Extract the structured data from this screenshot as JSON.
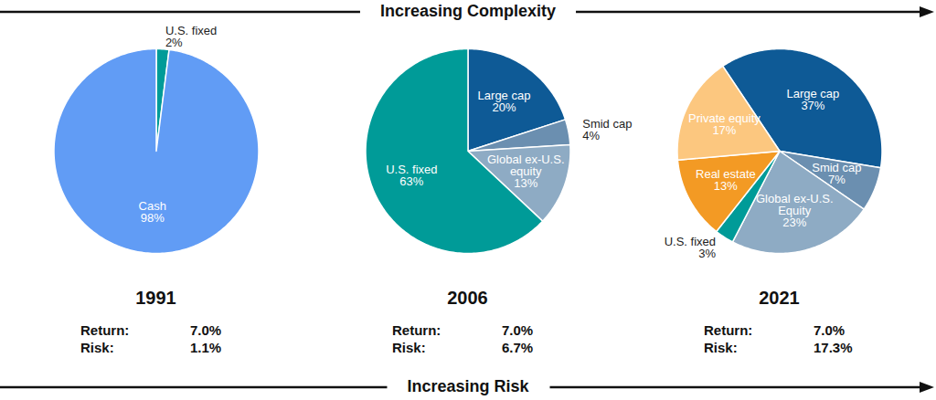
{
  "header": "Increasing Complexity",
  "footer": "Increasing Risk",
  "chart_data": [
    {
      "type": "pie",
      "title": "1991",
      "categories": [
        "U.S. fixed",
        "Cash"
      ],
      "values": [
        2,
        98
      ],
      "value_labels": [
        "2%",
        "98%"
      ],
      "colors": [
        "#009b98",
        "#619cf5"
      ],
      "data_labels": true,
      "stats": [
        [
          "Return:",
          "7.0%"
        ],
        [
          "Risk:",
          "1.1%"
        ]
      ]
    },
    {
      "type": "pie",
      "title": "2006",
      "categories": [
        "Large cap",
        "Smid cap",
        "Global ex-U.S. equity",
        "U.S. fixed"
      ],
      "values": [
        20,
        4,
        13,
        63
      ],
      "value_labels": [
        "20%",
        "4%",
        "13%",
        "63%"
      ],
      "colors": [
        "#0e5a96",
        "#6b8fb0",
        "#8eabc4",
        "#009b98"
      ],
      "data_labels": true,
      "stats": [
        [
          "Return:",
          "7.0%"
        ],
        [
          "Risk:",
          "6.7%"
        ]
      ]
    },
    {
      "type": "pie",
      "title": "2021",
      "categories": [
        "Large cap",
        "Smid cap",
        "Global ex-U.S. Equity",
        "U.S. fixed",
        "Real estate",
        "Private equity"
      ],
      "values": [
        37,
        7,
        23,
        3,
        13,
        17
      ],
      "value_labels": [
        "37%",
        "7%",
        "23%",
        "3%",
        "13%",
        "17%"
      ],
      "colors": [
        "#0e5a96",
        "#6b8fb0",
        "#8eabc4",
        "#009b98",
        "#f39a24",
        "#fcc77f"
      ],
      "data_labels": true,
      "stats": [
        [
          "Return:",
          "7.0%"
        ],
        [
          "Risk:",
          "17.3%"
        ]
      ]
    }
  ]
}
